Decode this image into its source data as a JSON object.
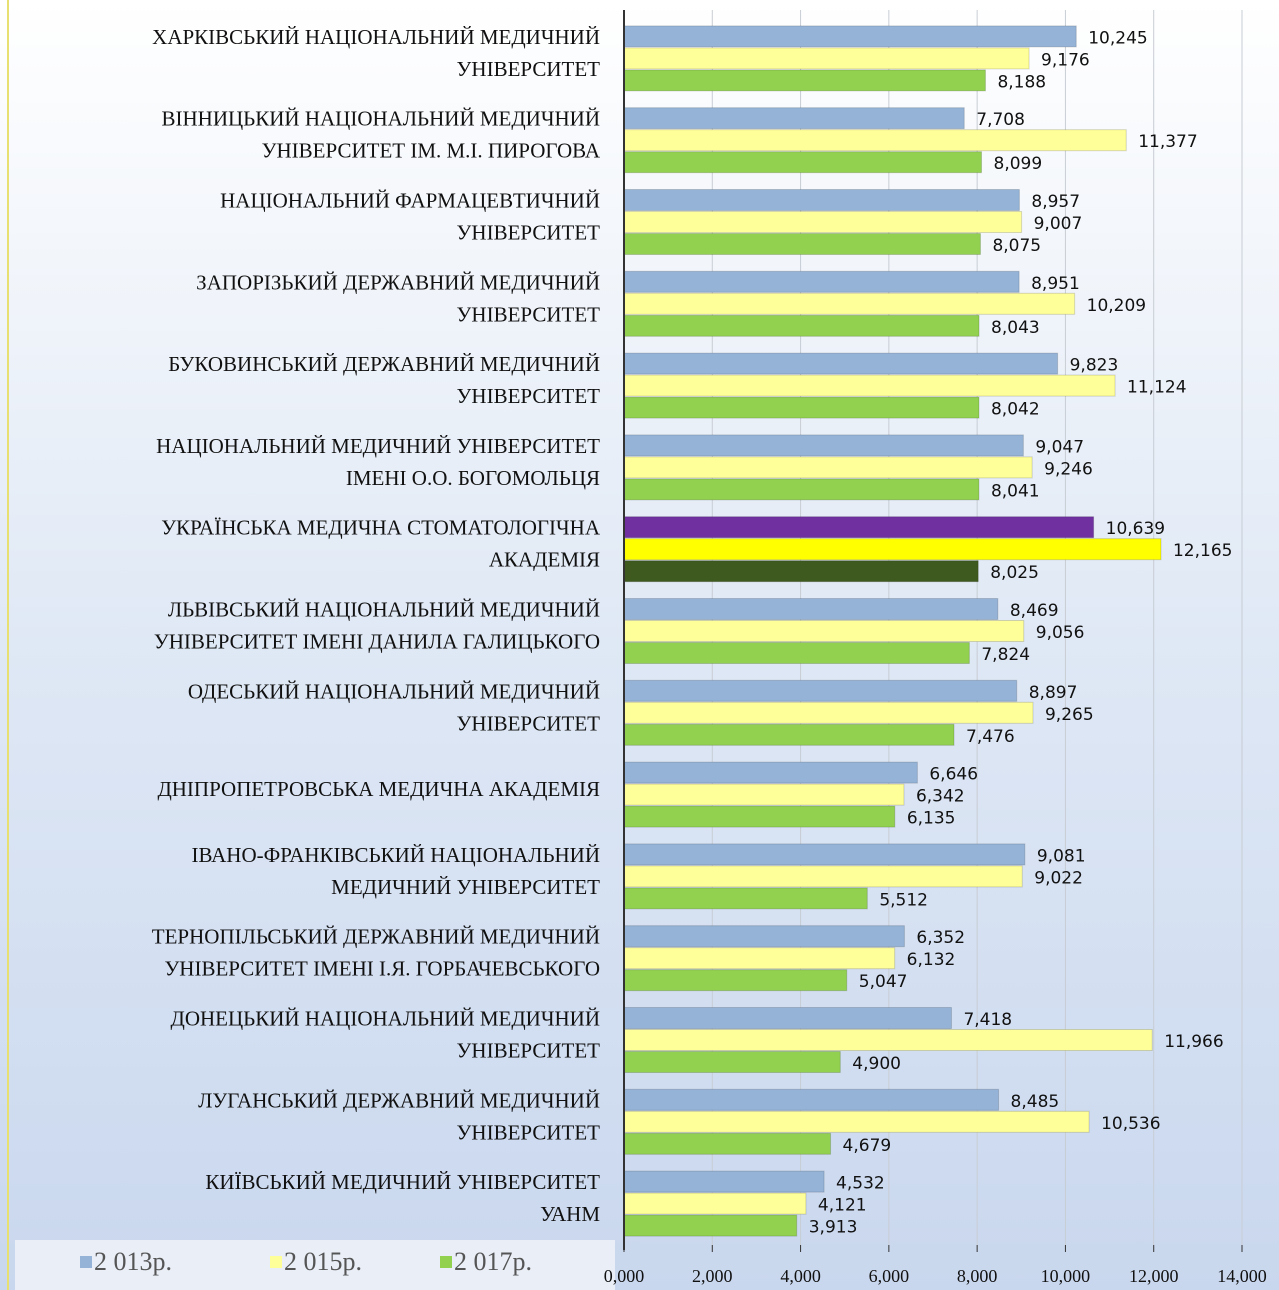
{
  "chart_data": {
    "type": "hbar",
    "categories": [
      [
        "ХАРКІВСЬКИЙ НАЦІОНАЛЬНИЙ МЕДИЧНИЙ",
        "УНІВЕРСИТЕТ"
      ],
      [
        "ВІННИЦЬКИЙ НАЦІОНАЛЬНИЙ МЕДИЧНИЙ",
        "УНІВЕРСИТЕТ ІМ. М.І. ПИРОГОВА"
      ],
      [
        "НАЦІОНАЛЬНИЙ ФАРМАЦЕВТИЧНИЙ",
        "УНІВЕРСИТЕТ"
      ],
      [
        "ЗАПОРІЗЬКИЙ ДЕРЖАВНИЙ МЕДИЧНИЙ",
        "УНІВЕРСИТЕТ"
      ],
      [
        "БУКОВИНСЬКИЙ ДЕРЖАВНИЙ МЕДИЧНИЙ",
        "УНІВЕРСИТЕТ"
      ],
      [
        "НАЦІОНАЛЬНИЙ МЕДИЧНИЙ УНІВЕРСИТЕТ",
        "ІМЕНІ О.О. БОГОМОЛЬЦЯ"
      ],
      [
        "УКРАЇНСЬКА МЕДИЧНА СТОМАТОЛОГІЧНА",
        "АКАДЕМІЯ"
      ],
      [
        "ЛЬВІВСЬКИЙ НАЦІОНАЛЬНИЙ МЕДИЧНИЙ",
        "УНІВЕРСИТЕТ ІМЕНІ ДАНИЛА ГАЛИЦЬКОГО"
      ],
      [
        "ОДЕСЬКИЙ НАЦІОНАЛЬНИЙ МЕДИЧНИЙ",
        "УНІВЕРСИТЕТ"
      ],
      [
        "ДНІПРОПЕТРОВСЬКА МЕДИЧНА АКАДЕМІЯ"
      ],
      [
        "ІВАНО-ФРАНКІВСЬКИЙ НАЦІОНАЛЬНИЙ",
        "МЕДИЧНИЙ УНІВЕРСИТЕТ"
      ],
      [
        "ТЕРНОПІЛЬСЬКИЙ ДЕРЖАВНИЙ МЕДИЧНИЙ",
        "УНІВЕРСИТЕТ ІМЕНІ І.Я. ГОРБАЧЕВСЬКОГО"
      ],
      [
        "ДОНЕЦЬКИЙ НАЦІОНАЛЬНИЙ МЕДИЧНИЙ",
        "УНІВЕРСИТЕТ"
      ],
      [
        "ЛУГАНСЬКИЙ ДЕРЖАВНИЙ МЕДИЧНИЙ",
        "УНІВЕРСИТЕТ"
      ],
      [
        "КИЇВСЬКИЙ МЕДИЧНИЙ УНІВЕРСИТЕТ",
        "УАНМ"
      ]
    ],
    "series": [
      {
        "name": "2 013р.",
        "color": "#95b3d7",
        "highlight": {
          "index": 6,
          "color": "#7030a0"
        },
        "values": [
          10.245,
          7.708,
          8.957,
          8.951,
          9.823,
          9.047,
          10.639,
          8.469,
          8.897,
          6.646,
          9.081,
          6.352,
          7.418,
          8.485,
          4.532
        ],
        "value_labels": [
          "10,245",
          "7,708",
          "8,957",
          "8,951",
          "9,823",
          "9,047",
          "10,639",
          "8,469",
          "8,897",
          "6,646",
          "9,081",
          "6,352",
          "7,418",
          "8,485",
          "4,532"
        ]
      },
      {
        "name": "2 015р.",
        "color": "#ffff99",
        "highlight": {
          "index": 6,
          "color": "#ffff00"
        },
        "values": [
          9.176,
          11.377,
          9.007,
          10.209,
          11.124,
          9.246,
          12.165,
          9.056,
          9.265,
          6.342,
          9.022,
          6.132,
          11.966,
          10.536,
          4.121
        ],
        "value_labels": [
          "9,176",
          "11,377",
          "9,007",
          "10,209",
          "11,124",
          "9,246",
          "12,165",
          "9,056",
          "9,265",
          "6,342",
          "9,022",
          "6,132",
          "11,966",
          "10,536",
          "4,121"
        ]
      },
      {
        "name": "2 017р.",
        "color": "#92d050",
        "highlight": {
          "index": 6,
          "color": "#3e5a1e"
        },
        "values": [
          8.188,
          8.099,
          8.075,
          8.043,
          8.042,
          8.041,
          8.025,
          7.824,
          7.476,
          6.135,
          5.512,
          5.047,
          4.9,
          4.679,
          3.913
        ],
        "value_labels": [
          "8,188",
          "8,099",
          "8,075",
          "8,043",
          "8,042",
          "8,041",
          "8,025",
          "7,824",
          "7,476",
          "6,135",
          "5,512",
          "5,047",
          "4,900",
          "4,679",
          "3,913"
        ]
      }
    ],
    "xlim": [
      0,
      14
    ],
    "xticks": [
      {
        "value": 0,
        "label": "0,000"
      },
      {
        "value": 2,
        "label": "2,000"
      },
      {
        "value": 4,
        "label": "4,000"
      },
      {
        "value": 6,
        "label": "6,000"
      },
      {
        "value": 8,
        "label": "8,000"
      },
      {
        "value": 10,
        "label": "10,000"
      },
      {
        "value": 12,
        "label": "12,000"
      },
      {
        "value": 14,
        "label": "14,000"
      }
    ],
    "grid": true,
    "legend": "bottom-left"
  }
}
